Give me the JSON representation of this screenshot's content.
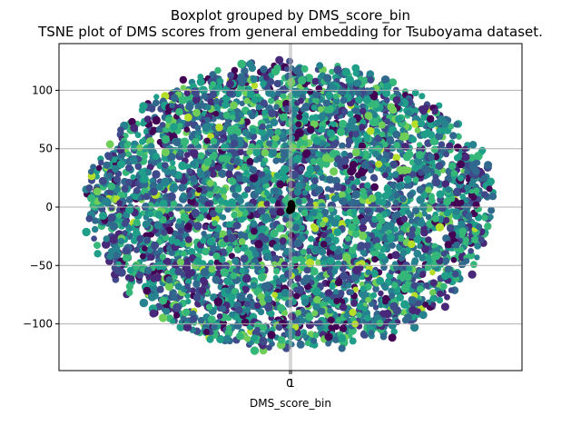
{
  "chart_data": {
    "type": "scatter",
    "title": "Boxplot grouped by DMS_score_bin",
    "subtitle": "TSNE plot of DMS scores from general embedding for Tsuboyama dataset.",
    "xlabel": "DMS_score_bin",
    "ylabel": "",
    "x_tick_labels": [
      "0",
      "1"
    ],
    "y_ticks": [
      100,
      50,
      0,
      -50,
      -100
    ],
    "ylim": [
      -140,
      140
    ],
    "xlim": [
      -130,
      130
    ],
    "grid": true,
    "colormap": [
      "#440154",
      "#482878",
      "#3e4a89",
      "#31688e",
      "#26828e",
      "#1f9e89",
      "#35b779",
      "#6ece58",
      "#b5de2b"
    ],
    "cloud_extent": {
      "x_radius": 118,
      "y_top": 128,
      "y_bottom": -128
    },
    "cluster_points": [
      [
        0.5,
        3
      ],
      [
        0.8,
        1
      ],
      [
        0.2,
        -1
      ],
      [
        0.6,
        -2
      ],
      [
        -0.5,
        -3
      ],
      [
        0.4,
        2
      ]
    ],
    "cluster_color": "#000000"
  }
}
